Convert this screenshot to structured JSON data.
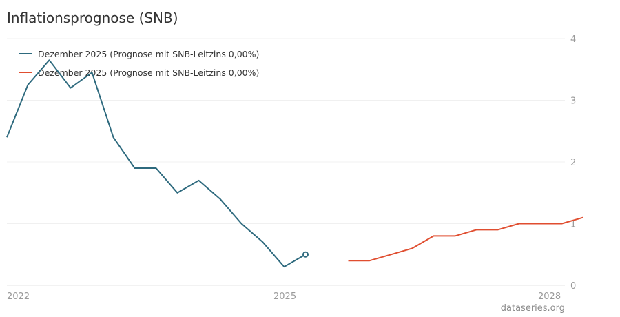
{
  "chart_data": {
    "type": "line",
    "title": "Inflationsprognose (SNB)",
    "ylim": [
      0,
      4
    ],
    "yticks": [
      0,
      1,
      2,
      3,
      4
    ],
    "xticks": [
      "2022",
      "2025",
      "2028"
    ],
    "legend_placement": "top-left",
    "series": [
      {
        "name": "Dezember 2025 (Prognose mit SNB-Leitzins 0,00%)",
        "color": "#2e6a7e",
        "x": [
          "Q4 2021",
          "Q1 2022",
          "Q2 2022",
          "Q3 2022",
          "Q4 2022",
          "Q1 2023",
          "Q2 2023",
          "Q3 2023",
          "Q4 2023",
          "Q1 2024",
          "Q2 2024",
          "Q3 2024",
          "Q4 2024",
          "Q1 2025",
          "Q2 2025"
        ],
        "values": [
          2.4,
          3.25,
          3.65,
          3.2,
          3.45,
          2.4,
          1.9,
          1.9,
          1.5,
          1.7,
          1.4,
          1.0,
          0.7,
          0.3,
          0.5
        ],
        "last_point_marker": true
      },
      {
        "name": "Dezember 2025 (Prognose mit SNB-Leitzins 0,00%)",
        "color": "#e04e30",
        "x": [
          "Q4 2025",
          "Q1 2026",
          "Q2 2026",
          "Q3 2026",
          "Q4 2026",
          "Q1 2027",
          "Q2 2027",
          "Q3 2027",
          "Q4 2027",
          "Q1 2028",
          "Q2 2028",
          "Q3 2028"
        ],
        "values": [
          0.4,
          0.4,
          0.5,
          0.6,
          0.8,
          0.8,
          0.9,
          0.9,
          1.0,
          1.0,
          1.0,
          1.1
        ]
      }
    ]
  },
  "source": "dataseries.org"
}
